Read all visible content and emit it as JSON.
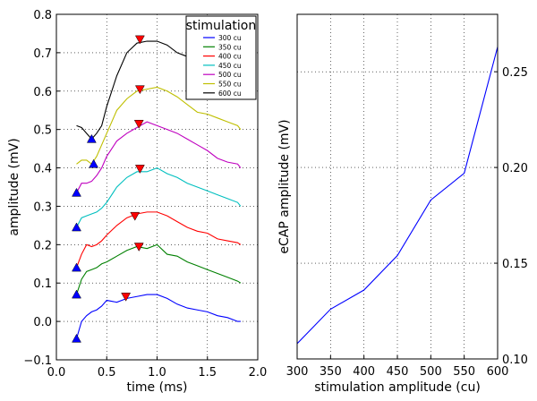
{
  "chart_data": [
    {
      "type": "line",
      "xlabel": "time (ms)",
      "ylabel": "amplitude (mV)",
      "xlim": [
        0.0,
        2.0
      ],
      "ylim": [
        -0.1,
        0.8
      ],
      "xticks": [
        "0.0",
        "0.5",
        "1.0",
        "1.5",
        "2.0"
      ],
      "yticks": [
        "−0.1",
        "0.0",
        "0.1",
        "0.2",
        "0.3",
        "0.4",
        "0.5",
        "0.6",
        "0.7",
        "0.8"
      ],
      "grid": true,
      "legend": {
        "title": "stimulation",
        "placement": "top-right"
      },
      "x": [
        0.2,
        0.25,
        0.3,
        0.35,
        0.4,
        0.45,
        0.5,
        0.6,
        0.7,
        0.8,
        0.9,
        1.0,
        1.1,
        1.2,
        1.3,
        1.4,
        1.5,
        1.6,
        1.7,
        1.8,
        1.83
      ],
      "series": [
        {
          "name": "300 cu",
          "color": "#0000ff",
          "values": [
            -0.045,
            0.0,
            0.015,
            0.025,
            0.03,
            0.04,
            0.055,
            0.05,
            0.06,
            0.065,
            0.07,
            0.07,
            0.06,
            0.045,
            0.035,
            0.03,
            0.025,
            0.015,
            0.01,
            0.0,
            0.0
          ],
          "min": [
            0.2,
            -0.045
          ],
          "max": [
            0.69,
            0.065
          ]
        },
        {
          "name": "350 cu",
          "color": "#008000",
          "values": [
            0.07,
            0.11,
            0.13,
            0.135,
            0.14,
            0.15,
            0.155,
            0.17,
            0.185,
            0.195,
            0.19,
            0.2,
            0.175,
            0.17,
            0.155,
            0.145,
            0.135,
            0.125,
            0.115,
            0.105,
            0.1
          ],
          "min": [
            0.2,
            0.07
          ],
          "max": [
            0.82,
            0.195
          ]
        },
        {
          "name": "400 cu",
          "color": "#ff0000",
          "values": [
            0.14,
            0.175,
            0.2,
            0.195,
            0.2,
            0.21,
            0.225,
            0.25,
            0.27,
            0.28,
            0.285,
            0.285,
            0.275,
            0.26,
            0.245,
            0.235,
            0.23,
            0.215,
            0.21,
            0.205,
            0.2
          ],
          "min": [
            0.2,
            0.14
          ],
          "max": [
            0.78,
            0.275
          ]
        },
        {
          "name": "450 cu",
          "color": "#00bfbf",
          "values": [
            0.245,
            0.27,
            0.275,
            0.28,
            0.285,
            0.295,
            0.31,
            0.35,
            0.375,
            0.39,
            0.39,
            0.4,
            0.385,
            0.375,
            0.36,
            0.35,
            0.34,
            0.33,
            0.32,
            0.31,
            0.3
          ],
          "min": [
            0.2,
            0.245
          ],
          "max": [
            0.83,
            0.398
          ]
        },
        {
          "name": "500 cu",
          "color": "#bf00bf",
          "values": [
            0.335,
            0.36,
            0.36,
            0.365,
            0.38,
            0.4,
            0.43,
            0.47,
            0.49,
            0.505,
            0.52,
            0.51,
            0.5,
            0.49,
            0.475,
            0.46,
            0.445,
            0.425,
            0.415,
            0.41,
            0.4
          ],
          "min": [
            0.2,
            0.335
          ],
          "max": [
            0.82,
            0.515
          ]
        },
        {
          "name": "550 cu",
          "color": "#bfbf00",
          "values": [
            0.41,
            0.42,
            0.42,
            0.41,
            0.43,
            0.46,
            0.49,
            0.55,
            0.58,
            0.6,
            0.605,
            0.61,
            0.6,
            0.585,
            0.565,
            0.545,
            0.54,
            0.53,
            0.52,
            0.51,
            0.5
          ],
          "min": [
            0.37,
            0.41
          ],
          "max": [
            0.83,
            0.605
          ]
        },
        {
          "name": "600 cu",
          "color": "#000000",
          "values": [
            0.51,
            0.505,
            0.49,
            0.475,
            0.49,
            0.51,
            0.56,
            0.64,
            0.7,
            0.725,
            0.73,
            0.73,
            0.72,
            0.7,
            0.69,
            0.675,
            0.66,
            0.645,
            0.63,
            0.62,
            0.6
          ],
          "min": [
            0.35,
            0.475
          ],
          "max": [
            0.83,
            0.735
          ]
        }
      ]
    },
    {
      "type": "line",
      "xlabel": "stimulation amplitude (cu)",
      "ylabel": "eCAP amplitude (mV)",
      "xlim": [
        300,
        600
      ],
      "ylim": [
        0.1,
        0.28
      ],
      "xticks": [
        "300",
        "350",
        "400",
        "450",
        "500",
        "550",
        "600"
      ],
      "yticks": [
        "0.10",
        "0.15",
        "0.20",
        "0.25"
      ],
      "grid": true,
      "color": "#0000ff",
      "x": [
        300,
        350,
        400,
        450,
        500,
        550,
        600
      ],
      "values": [
        0.108,
        0.126,
        0.136,
        0.154,
        0.183,
        0.197,
        0.263
      ]
    }
  ]
}
